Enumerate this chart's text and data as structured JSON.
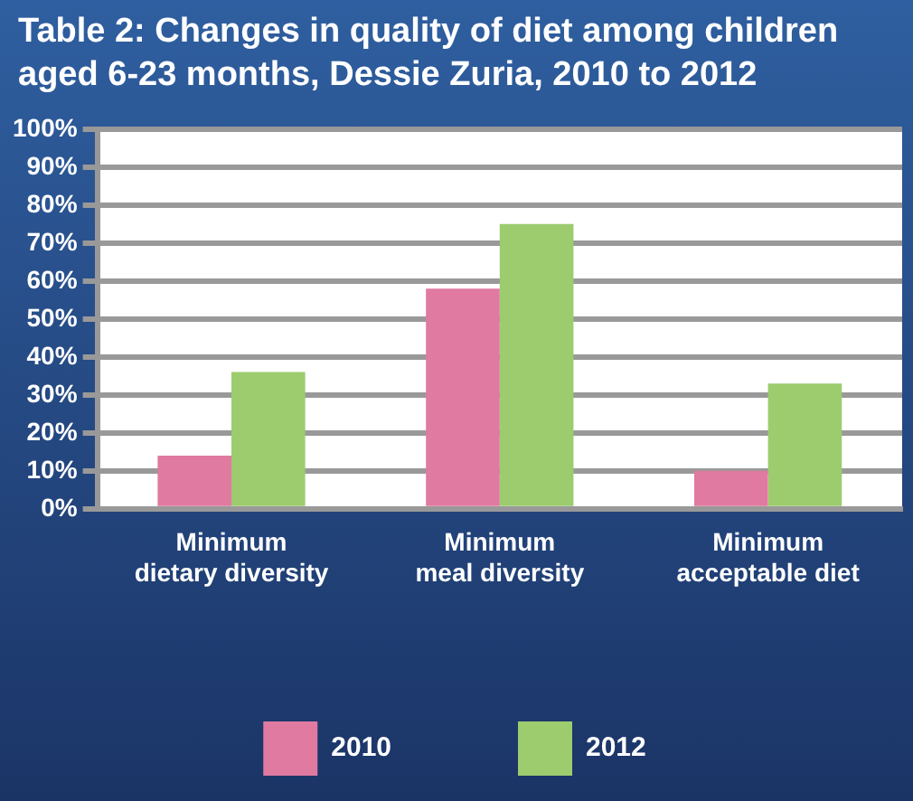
{
  "chart_data": {
    "type": "bar",
    "title": "Table 2: Changes in quality of diet among children aged 6-23 months, Dessie Zuria, 2010 to 2012",
    "categories": [
      "Minimum dietary diversity",
      "Minimum meal diversity",
      "Minimum acceptable diet"
    ],
    "series": [
      {
        "name": "2010",
        "color": "#e07aa0",
        "values": [
          14,
          58,
          10
        ]
      },
      {
        "name": "2012",
        "color": "#9ccc6e",
        "values": [
          36,
          75,
          33
        ]
      }
    ],
    "ylim": [
      0,
      100
    ],
    "yticks": [
      {
        "value": 0,
        "label": "0%"
      },
      {
        "value": 10,
        "label": "10%"
      },
      {
        "value": 20,
        "label": "20%"
      },
      {
        "value": 30,
        "label": "30%"
      },
      {
        "value": 40,
        "label": "40%"
      },
      {
        "value": 50,
        "label": "50%"
      },
      {
        "value": 60,
        "label": "60%"
      },
      {
        "value": 70,
        "label": "70%"
      },
      {
        "value": 80,
        "label": "80%"
      },
      {
        "value": 90,
        "label": "90%"
      },
      {
        "value": 100,
        "label": "100%"
      }
    ],
    "grid": "y",
    "legend": "bottom"
  }
}
